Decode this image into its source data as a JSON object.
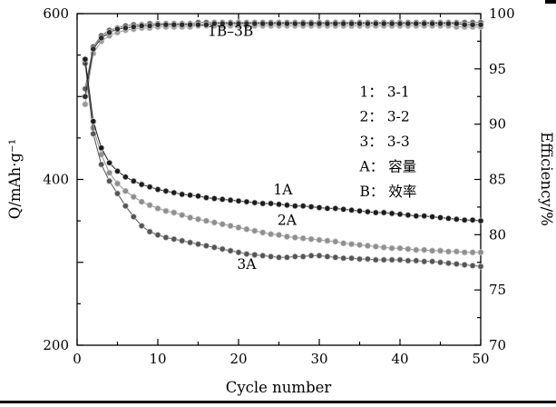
{
  "figure": {
    "background": "#ffffff",
    "frame_color": "#000000"
  },
  "chart_data": {
    "type": "line",
    "title": "",
    "xlabel": "Cycle number",
    "ylabel_left": "Q/mAh·g⁻¹",
    "ylabel_right": "Efficiency/%",
    "xlim": [
      0,
      50
    ],
    "ylim_left": [
      200,
      600
    ],
    "ylim_right": [
      70,
      100
    ],
    "x_ticks": [
      0,
      10,
      20,
      30,
      40,
      50
    ],
    "x_minor_step": 5,
    "y_left_ticks": [
      200,
      300,
      400,
      500,
      600
    ],
    "y_left_labeled": [
      200,
      400,
      600
    ],
    "y_left_minor_ticks": [
      250,
      350,
      450,
      550
    ],
    "y_right_ticks": [
      70,
      75,
      80,
      85,
      90,
      95,
      100
    ],
    "y_right_minor_ticks": [
      72.5,
      77.5,
      82.5,
      87.5,
      92.5,
      97.5
    ],
    "grid": false,
    "legend": {
      "x": 35,
      "y_start": 500,
      "y_step": -30,
      "lines": [
        "1： 3-1",
        "2： 3-2",
        "3： 3-3",
        "A： 容量",
        "B： 效率"
      ]
    },
    "annotations": [
      {
        "text": "1B–3B",
        "x": 19,
        "y": 573
      },
      {
        "text": "1A",
        "x": 25.5,
        "y": 382
      },
      {
        "text": "2A",
        "x": 26,
        "y": 345
      },
      {
        "text": "3A",
        "x": 21,
        "y": 292
      }
    ],
    "series": [
      {
        "name": "2B",
        "axis": "right",
        "color": "#9b9b9b",
        "x_start": 1,
        "x_step": 1,
        "y": [
          91.8,
          96.4,
          97.5,
          98.0,
          98.3,
          98.5,
          98.6,
          98.7,
          98.7,
          98.8,
          98.8,
          98.8,
          98.8,
          98.8,
          98.9,
          98.9,
          98.9,
          98.9,
          98.9,
          98.9,
          98.9,
          98.9,
          98.9,
          98.9,
          98.9,
          98.9,
          98.9,
          98.9,
          98.9,
          98.9,
          98.9,
          98.9,
          98.9,
          98.9,
          98.9,
          98.9,
          98.9,
          98.9,
          98.9,
          98.9,
          98.9,
          98.9,
          98.9,
          98.9,
          98.9,
          98.9,
          98.8,
          98.8,
          98.8,
          98.8
        ]
      },
      {
        "name": "3B",
        "axis": "right",
        "color": "#5e5e5e",
        "x_start": 1,
        "x_step": 1,
        "y": [
          93.2,
          97.0,
          98.0,
          98.5,
          98.7,
          98.9,
          99.0,
          99.0,
          99.1,
          99.1,
          99.1,
          99.1,
          99.1,
          99.1,
          99.2,
          99.2,
          99.2,
          99.2,
          99.2,
          99.2,
          99.2,
          99.2,
          99.2,
          99.2,
          99.2,
          99.2,
          99.2,
          99.2,
          99.2,
          99.2,
          99.2,
          99.2,
          99.2,
          99.2,
          99.2,
          99.2,
          99.2,
          99.2,
          99.2,
          99.2,
          99.2,
          99.2,
          99.2,
          99.2,
          99.2,
          99.2,
          99.2,
          99.2,
          99.2,
          99.2
        ]
      },
      {
        "name": "1B",
        "axis": "right",
        "color": "#2b2b2b",
        "x_start": 1,
        "x_step": 1,
        "y": [
          92.5,
          96.8,
          97.8,
          98.3,
          98.6,
          98.7,
          98.8,
          98.9,
          98.9,
          99.0,
          99.0,
          99.0,
          99.0,
          99.0,
          99.0,
          99.0,
          99.1,
          99.1,
          99.1,
          99.1,
          99.1,
          99.1,
          99.1,
          99.1,
          99.1,
          99.1,
          99.1,
          99.1,
          99.1,
          99.1,
          99.1,
          99.1,
          99.1,
          99.1,
          99.1,
          99.1,
          99.1,
          99.1,
          99.1,
          99.1,
          99.1,
          99.1,
          99.1,
          99.1,
          99.1,
          99.1,
          99.1,
          99.0,
          99.0,
          99.0
        ]
      },
      {
        "name": "2A",
        "axis": "left",
        "color": "#8f8f8f",
        "x_start": 1,
        "x_step": 1,
        "y": [
          543,
          462,
          430,
          408,
          395,
          386,
          379,
          373,
          369,
          365,
          362,
          360,
          357,
          354,
          352,
          350,
          348,
          346,
          344,
          342,
          340,
          338,
          336,
          334,
          333,
          331,
          330,
          329,
          328,
          327,
          326,
          325,
          323,
          322,
          321,
          320,
          319,
          318,
          317,
          317,
          316,
          315,
          315,
          314,
          314,
          313,
          313,
          312,
          312,
          312
        ]
      },
      {
        "name": "3A",
        "axis": "left",
        "color": "#555555",
        "x_start": 1,
        "x_step": 1,
        "y": [
          540,
          455,
          418,
          398,
          383,
          368,
          355,
          344,
          337,
          333,
          330,
          328,
          326,
          324,
          322,
          320,
          318,
          316,
          314,
          312,
          310,
          309,
          308,
          307,
          306,
          306,
          307,
          307,
          308,
          308,
          307,
          306,
          305,
          305,
          304,
          304,
          303,
          303,
          303,
          303,
          302,
          302,
          301,
          301,
          300,
          299,
          298,
          297,
          296,
          295
        ]
      },
      {
        "name": "1A",
        "axis": "left",
        "color": "#1c1c1c",
        "x_start": 1,
        "x_step": 1,
        "y": [
          545,
          470,
          438,
          420,
          410,
          403,
          398,
          394,
          391,
          388,
          386,
          384,
          382,
          381,
          380,
          378,
          377,
          376,
          375,
          374,
          373,
          372,
          371,
          371,
          370,
          369,
          368,
          368,
          367,
          366,
          365,
          365,
          364,
          363,
          362,
          361,
          360,
          360,
          359,
          358,
          357,
          356,
          356,
          355,
          354,
          353,
          352,
          351,
          351,
          350
        ]
      }
    ]
  }
}
